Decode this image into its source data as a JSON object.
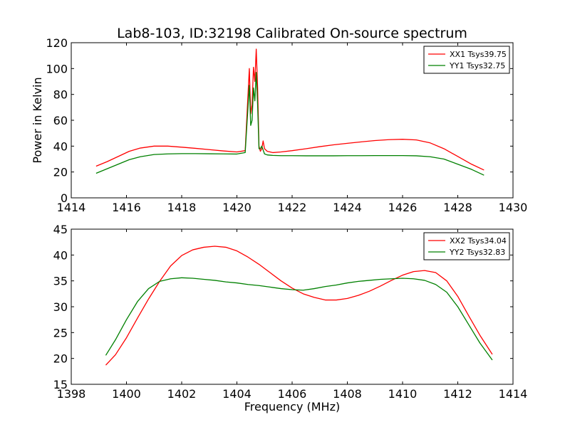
{
  "title": "Lab8-103, ID:32198 Calibrated On-source spectrum",
  "colors": {
    "xx": "#ff0000",
    "yy": "#008000",
    "frame": "#000000",
    "background": "#ffffff"
  },
  "chart_data": [
    {
      "type": "line",
      "title": "Lab8-103, ID:32198 Calibrated On-source spectrum",
      "xlabel": "",
      "ylabel": "Power in Kelvin",
      "xlim": [
        1414,
        1430
      ],
      "ylim": [
        0,
        120
      ],
      "xticks": [
        1414,
        1416,
        1418,
        1420,
        1422,
        1424,
        1426,
        1428,
        1430
      ],
      "yticks": [
        0,
        20,
        40,
        60,
        80,
        100,
        120
      ],
      "grid": false,
      "legend_position": "top-right",
      "series": [
        {
          "name": "XX1 Tsys39.75",
          "color": "#ff0000",
          "x": [
            1414.9,
            1415.3,
            1415.7,
            1416.1,
            1416.5,
            1417.0,
            1417.5,
            1418.0,
            1418.5,
            1419.0,
            1419.5,
            1420.0,
            1420.3,
            1420.45,
            1420.5,
            1420.55,
            1420.6,
            1420.65,
            1420.7,
            1420.75,
            1420.8,
            1420.85,
            1420.9,
            1420.95,
            1421.0,
            1421.1,
            1421.3,
            1421.6,
            1422.0,
            1422.5,
            1423.0,
            1423.5,
            1424.0,
            1424.5,
            1425.0,
            1425.5,
            1426.0,
            1426.5,
            1427.0,
            1427.5,
            1428.0,
            1428.5,
            1428.95
          ],
          "y": [
            24.5,
            28,
            32,
            36,
            38.5,
            40,
            40,
            39.2,
            38.3,
            37.3,
            36.3,
            35.5,
            36.5,
            100,
            65,
            72,
            101,
            90,
            115,
            85,
            40,
            36,
            38,
            44,
            38,
            36,
            35,
            35.5,
            36.5,
            38,
            39.6,
            41,
            42.2,
            43.3,
            44.3,
            45,
            45.3,
            44.8,
            42.5,
            38,
            32,
            26,
            21.5
          ]
        },
        {
          "name": "YY1 Tsys32.75",
          "color": "#008000",
          "x": [
            1414.9,
            1415.3,
            1415.7,
            1416.1,
            1416.5,
            1417.0,
            1417.5,
            1418.0,
            1418.5,
            1419.0,
            1419.5,
            1420.0,
            1420.3,
            1420.45,
            1420.5,
            1420.55,
            1420.6,
            1420.65,
            1420.7,
            1420.75,
            1420.8,
            1420.85,
            1420.9,
            1420.95,
            1421.0,
            1421.1,
            1421.3,
            1421.6,
            1422.0,
            1422.5,
            1423.0,
            1423.5,
            1424.0,
            1424.5,
            1425.0,
            1425.5,
            1426.0,
            1426.5,
            1427.0,
            1427.5,
            1428.0,
            1428.5,
            1428.95
          ],
          "y": [
            19,
            22.5,
            26,
            29.5,
            31.8,
            33.5,
            34,
            34.2,
            34.2,
            34.1,
            34,
            33.9,
            35,
            87,
            56,
            60,
            85,
            75,
            97,
            72,
            38,
            38,
            40,
            37,
            34,
            33.2,
            32.8,
            32.6,
            32.6,
            32.5,
            32.5,
            32.5,
            32.6,
            32.6,
            32.7,
            32.7,
            32.7,
            32.5,
            31.8,
            30,
            26,
            22,
            17.5
          ]
        }
      ]
    },
    {
      "type": "line",
      "title": "",
      "xlabel": "Frequency (MHz)",
      "ylabel": "",
      "xlim": [
        1398,
        1414
      ],
      "ylim": [
        15,
        45
      ],
      "xticks": [
        1398,
        1400,
        1402,
        1404,
        1406,
        1408,
        1410,
        1412,
        1414
      ],
      "yticks": [
        15,
        20,
        25,
        30,
        35,
        40,
        45
      ],
      "grid": false,
      "legend_position": "top-right",
      "series": [
        {
          "name": "XX2 Tsys34.04",
          "color": "#ff0000",
          "x": [
            1399.25,
            1399.6,
            1400.0,
            1400.4,
            1400.8,
            1401.2,
            1401.6,
            1402.0,
            1402.4,
            1402.8,
            1403.2,
            1403.6,
            1404.0,
            1404.4,
            1404.8,
            1405.2,
            1405.6,
            1406.0,
            1406.4,
            1406.8,
            1407.2,
            1407.6,
            1408.0,
            1408.4,
            1408.8,
            1409.2,
            1409.6,
            1410.0,
            1410.4,
            1410.8,
            1411.2,
            1411.6,
            1412.0,
            1412.4,
            1412.8,
            1413.25
          ],
          "y": [
            18.7,
            20.7,
            24,
            27.8,
            31.5,
            34.9,
            37.9,
            39.9,
            41.0,
            41.5,
            41.7,
            41.5,
            40.8,
            39.6,
            38.2,
            36.6,
            35.0,
            33.6,
            32.5,
            31.8,
            31.3,
            31.3,
            31.6,
            32.2,
            33.0,
            34.0,
            35.1,
            36.1,
            36.8,
            37.0,
            36.6,
            35.0,
            32.0,
            28.2,
            24.5,
            20.8
          ]
        },
        {
          "name": "YY2 Tsys32.83",
          "color": "#008000",
          "x": [
            1399.25,
            1399.6,
            1400.0,
            1400.4,
            1400.8,
            1401.2,
            1401.6,
            1402.0,
            1402.4,
            1402.8,
            1403.2,
            1403.6,
            1404.0,
            1404.4,
            1404.8,
            1405.2,
            1405.6,
            1406.0,
            1406.4,
            1406.8,
            1407.2,
            1407.6,
            1408.0,
            1408.4,
            1408.8,
            1409.2,
            1409.6,
            1410.0,
            1410.4,
            1410.8,
            1411.2,
            1411.6,
            1412.0,
            1412.4,
            1412.8,
            1413.25
          ],
          "y": [
            20.6,
            23.6,
            27.5,
            31.0,
            33.5,
            34.9,
            35.4,
            35.6,
            35.5,
            35.3,
            35.1,
            34.8,
            34.6,
            34.3,
            34.1,
            33.8,
            33.5,
            33.3,
            33.2,
            33.5,
            33.9,
            34.2,
            34.6,
            34.9,
            35.1,
            35.3,
            35.4,
            35.5,
            35.4,
            35.1,
            34.3,
            32.8,
            30.0,
            26.5,
            23.0,
            19.7
          ]
        }
      ]
    }
  ]
}
